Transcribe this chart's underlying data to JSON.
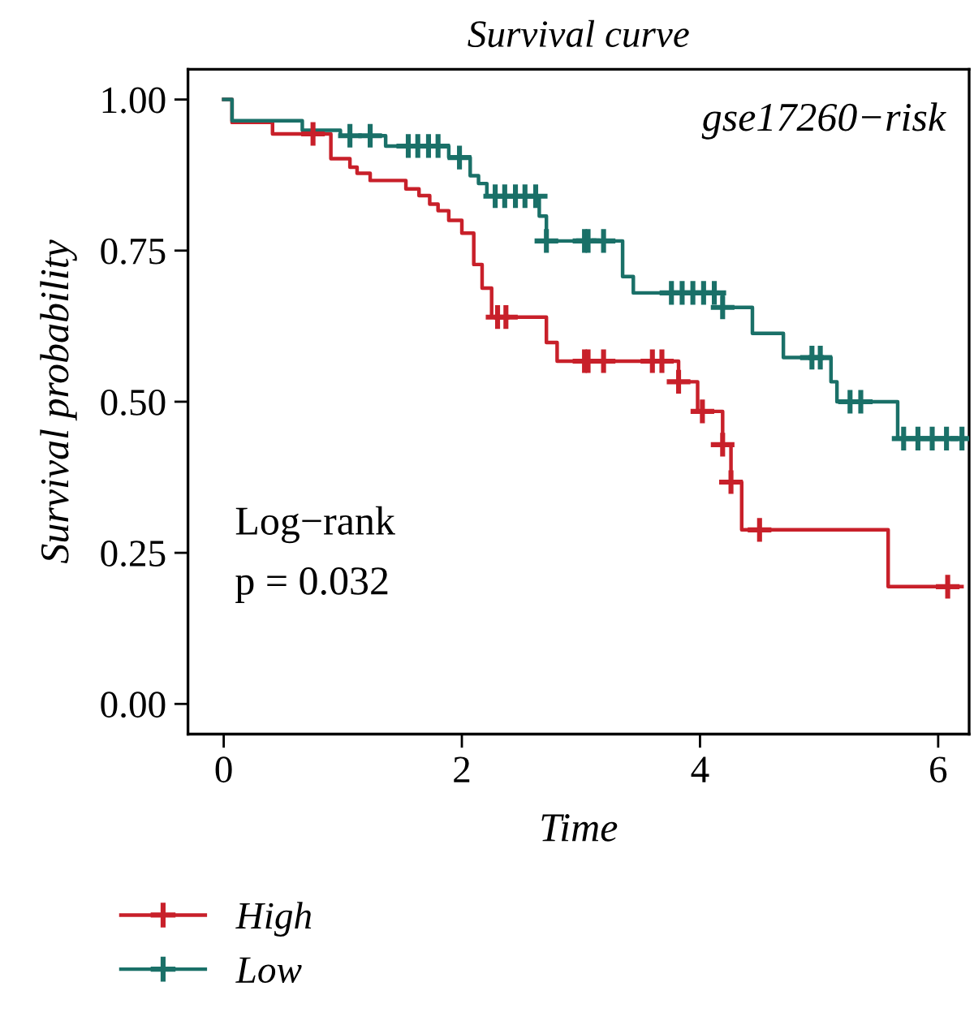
{
  "chart_data": {
    "type": "step",
    "title": "Survival curve",
    "xlabel": "Time",
    "ylabel": "Survival probability",
    "xlim": [
      -0.3,
      6.26
    ],
    "ylim": [
      -0.05,
      1.05
    ],
    "xticks": [
      0,
      2,
      4,
      6
    ],
    "yticks": [
      {
        "value": 0,
        "label": "0.00"
      },
      {
        "value": 0.25,
        "label": "0.25"
      },
      {
        "value": 0.5,
        "label": "0.50"
      },
      {
        "value": 0.75,
        "label": "0.75"
      },
      {
        "value": 1,
        "label": "1.00"
      }
    ],
    "grid": false,
    "legend": "bottom",
    "annotations": [
      "gse17260−risk",
      "Log−rank",
      "p = 0.032"
    ],
    "series": [
      {
        "name": "High",
        "color": "#c8202a",
        "x": [
          0,
          0.07,
          0.41,
          0.9,
          1.06,
          1.12,
          1.23,
          1.53,
          1.64,
          1.73,
          1.8,
          1.89,
          2.0,
          2.1,
          2.17,
          2.25,
          2.71,
          2.8,
          3.82,
          3.98,
          4.19,
          4.26,
          4.35,
          5.58,
          6.2
        ],
        "values": [
          1.0,
          0.962,
          0.943,
          0.902,
          0.888,
          0.878,
          0.866,
          0.852,
          0.841,
          0.827,
          0.816,
          0.8,
          0.779,
          0.727,
          0.688,
          0.64,
          0.598,
          0.567,
          0.533,
          0.484,
          0.429,
          0.367,
          0.288,
          0.194,
          0.194
        ]
      },
      {
        "name": "Low",
        "color": "#1a7068",
        "x": [
          0,
          0.07,
          0.66,
          0.98,
          1.36,
          1.89,
          2.07,
          2.14,
          2.21,
          2.65,
          2.71,
          3.35,
          3.44,
          4.19,
          4.44,
          4.7,
          5.1,
          5.15,
          5.66,
          6.2
        ],
        "values": [
          1.0,
          0.965,
          0.949,
          0.94,
          0.923,
          0.904,
          0.874,
          0.861,
          0.84,
          0.807,
          0.766,
          0.707,
          0.68,
          0.656,
          0.613,
          0.573,
          0.533,
          0.5,
          0.439,
          0.439
        ]
      },
      {
        "type": "scatter",
        "marker": "cross",
        "color": "#c8202a",
        "x": [
          0.75,
          2.3,
          2.37,
          3.03,
          3.06,
          3.19,
          3.6,
          3.68,
          3.82,
          4.02,
          4.19,
          4.26,
          4.5,
          6.08
        ],
        "values": [
          0.943,
          0.64,
          0.64,
          0.567,
          0.567,
          0.567,
          0.567,
          0.567,
          0.533,
          0.484,
          0.429,
          0.367,
          0.288,
          0.194
        ]
      },
      {
        "type": "scatter",
        "marker": "cross",
        "color": "#1a7068",
        "x": [
          1.06,
          1.23,
          1.55,
          1.63,
          1.72,
          1.8,
          1.98,
          2.28,
          2.36,
          2.45,
          2.53,
          2.62,
          2.71,
          3.03,
          3.06,
          3.19,
          3.76,
          3.85,
          3.94,
          4.03,
          4.12,
          4.19,
          4.94,
          5.01,
          5.26,
          5.35,
          5.71,
          5.83,
          5.95,
          6.07,
          6.2
        ],
        "values": [
          0.94,
          0.94,
          0.923,
          0.923,
          0.923,
          0.923,
          0.904,
          0.84,
          0.84,
          0.84,
          0.84,
          0.84,
          0.766,
          0.766,
          0.766,
          0.766,
          0.68,
          0.68,
          0.68,
          0.68,
          0.68,
          0.656,
          0.573,
          0.573,
          0.5,
          0.5,
          0.439,
          0.439,
          0.439,
          0.439,
          0.439
        ]
      }
    ]
  }
}
